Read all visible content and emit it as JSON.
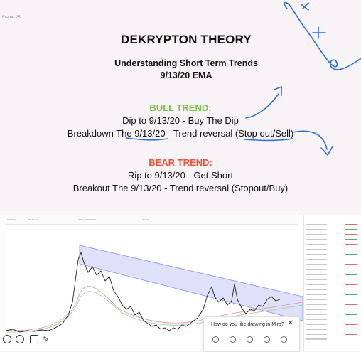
{
  "frame": {
    "label": "Frame 25"
  },
  "slide": {
    "title": "DEKRYPTON THEORY",
    "subtitle_1": "Understanding Short Term Trends",
    "subtitle_2": "9/13/20 EMA",
    "bull": {
      "heading": "BULL TREND:",
      "line_1": "Dip to 9/13/20 - Buy The Dip",
      "line_2": "Breakdown The 9/13/20 - Trend reversal (Stop out/Sell)"
    },
    "bear": {
      "heading": "BEAR TREND:",
      "line_1": "Rip to 9/13/20 - Get Short",
      "line_2": "Breakout The 9/13/20 - Trend reversal (Stopout/Buy)"
    }
  },
  "colors": {
    "bull": "#7cc242",
    "bear": "#e8543a",
    "ink": "#2f6fd6",
    "channel": "#8a8ef0"
  },
  "feedback": {
    "question": "How do you like drawing in Miro?",
    "close": "✕"
  },
  "icons": [
    "grid-icon",
    "clock-icon",
    "comment-icon",
    "pen-icon",
    "close-icon"
  ]
}
